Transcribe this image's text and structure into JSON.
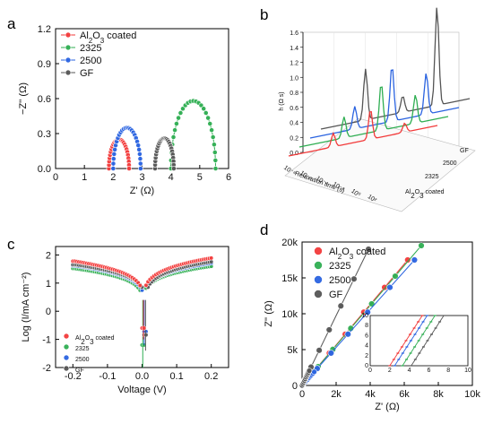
{
  "colors": {
    "al2o3": "#f23a3a",
    "s2325": "#2fae52",
    "s2500": "#2a63e0",
    "gf": "#555555"
  },
  "chart_data": [
    {
      "panel": "a",
      "type": "scatter",
      "xlabel": "Z' (Ω)",
      "ylabel": "−Z'' (Ω)",
      "xlim": [
        0,
        6
      ],
      "ylim": [
        0,
        1.2
      ],
      "xticks": [
        "0",
        "1",
        "2",
        "3",
        "4",
        "5",
        "6"
      ],
      "yticks": [
        "0.0",
        "0.3",
        "0.6",
        "0.9",
        "1.2"
      ],
      "legend_position": "top-left",
      "series": [
        {
          "name": "Al2O3 coated",
          "color": "al2o3",
          "arc": {
            "x_start": 1.85,
            "x_end": 2.55,
            "peak": 0.25
          }
        },
        {
          "name": "2325",
          "color": "s2325",
          "arc": {
            "x_start": 4.0,
            "x_end": 5.55,
            "peak": 0.58
          }
        },
        {
          "name": "2500",
          "color": "s2500",
          "arc": {
            "x_start": 2.0,
            "x_end": 2.95,
            "peak": 0.35
          }
        },
        {
          "name": "GF",
          "color": "gf",
          "arc": {
            "x_start": 3.45,
            "x_end": 4.1,
            "peak": 0.26
          }
        }
      ]
    },
    {
      "panel": "b",
      "type": "line",
      "xlabel": "Relaxation time (s)",
      "zlabel": "h (Ω s)",
      "zlim": [
        0,
        1.6
      ],
      "zticks": [
        "0.0",
        "0.2",
        "0.4",
        "0.6",
        "0.8",
        "1.0",
        "1.2",
        "1.4",
        "1.6"
      ],
      "xticks": [
        "10⁻⁸",
        "10⁻⁶",
        "10⁻⁴",
        "10⁻²",
        "10⁰",
        "10²"
      ],
      "series": [
        {
          "name": "Al2O3 coated",
          "color": "al2o3",
          "peaks": [
            {
              "t": 0.3,
              "h": 0.18
            },
            {
              "t": 0.55,
              "h": 0.4
            },
            {
              "t": 0.78,
              "h": 0.12
            }
          ]
        },
        {
          "name": "2325",
          "color": "s2325",
          "peaks": [
            {
              "t": 0.3,
              "h": 0.28
            },
            {
              "t": 0.55,
              "h": 0.63
            },
            {
              "t": 0.78,
              "h": 0.38
            }
          ]
        },
        {
          "name": "2500",
          "color": "s2500",
          "peaks": [
            {
              "t": 0.3,
              "h": 0.3
            },
            {
              "t": 0.55,
              "h": 0.75
            },
            {
              "t": 0.78,
              "h": 0.55
            }
          ]
        },
        {
          "name": "GF",
          "color": "gf",
          "peaks": [
            {
              "t": 0.3,
              "h": 0.68
            },
            {
              "t": 0.55,
              "h": 0.22
            },
            {
              "t": 0.78,
              "h": 1.32
            }
          ]
        }
      ],
      "depth_labels": [
        "Al2O3 coated",
        "2325",
        "2500",
        "GF"
      ]
    },
    {
      "panel": "c",
      "type": "scatter",
      "xlabel": "Voltage (V)",
      "ylabel": "Log (I/mA cm⁻²)",
      "xlim": [
        -0.25,
        0.25
      ],
      "ylim": [
        -2,
        2.3
      ],
      "xticks": [
        "-0.2",
        "-0.1",
        "0.0",
        "0.1",
        "0.2"
      ],
      "yticks": [
        "-2",
        "-1",
        "0",
        "1",
        "2"
      ],
      "legend_position": "bottom-left",
      "series": [
        {
          "name": "Al2O3 coated",
          "color": "al2o3",
          "left": 1.78,
          "right": 1.9,
          "ecorr": 0.004,
          "dip": -1.0
        },
        {
          "name": "2325",
          "color": "s2325",
          "left": 1.52,
          "right": 1.6,
          "ecorr": 0.002,
          "dip": -2.0
        },
        {
          "name": "2500",
          "color": "s2500",
          "left": 1.62,
          "right": 1.72,
          "ecorr": 0.006,
          "dip": -1.2
        },
        {
          "name": "GF",
          "color": "gf",
          "left": 1.65,
          "right": 1.78,
          "ecorr": 0.01,
          "dip": -1.4
        }
      ]
    },
    {
      "panel": "d",
      "type": "scatter",
      "xlabel": "Z' (Ω)",
      "ylabel": "Z'' (Ω)",
      "xlim": [
        0,
        10000
      ],
      "ylim": [
        0,
        20000
      ],
      "xticks": [
        "0",
        "2k",
        "4k",
        "6k",
        "8k",
        "10k"
      ],
      "yticks": [
        "0",
        "5k",
        "10k",
        "15k",
        "20k"
      ],
      "legend_position": "top-left",
      "series": [
        {
          "name": "Al2O3 coated",
          "color": "al2o3",
          "x_end": 6200,
          "y_end": 17500
        },
        {
          "name": "2325",
          "color": "s2325",
          "x_end": 7000,
          "y_end": 19500
        },
        {
          "name": "2500",
          "color": "s2500",
          "x_end": 6600,
          "y_end": 17500
        },
        {
          "name": "GF",
          "color": "gf",
          "x_end": 3900,
          "y_end": 19000
        }
      ],
      "inset": {
        "xlim": [
          0,
          10
        ],
        "ylim": [
          0,
          10
        ],
        "xticks": [
          "0",
          "2",
          "4",
          "6",
          "8",
          "10"
        ],
        "yticks": [
          "0",
          "2",
          "4",
          "6",
          "8",
          "10"
        ],
        "lines": [
          {
            "color": "al2o3",
            "x0": 2.0,
            "slope": 3.0
          },
          {
            "color": "s2500",
            "x0": 2.5,
            "slope": 3.0
          },
          {
            "color": "s2325",
            "x0": 3.3,
            "slope": 3.0
          },
          {
            "color": "gf",
            "x0": 4.2,
            "slope": 3.0
          }
        ]
      }
    }
  ],
  "panel_labels": [
    "a",
    "b",
    "c",
    "d"
  ],
  "legend": {
    "al2o3_main": "Al",
    "al2o3_sub1": "2",
    "al2o3_mid": "O",
    "al2o3_sub2": "3",
    "al2o3_tail": " coated",
    "s2325": "2325",
    "s2500": "2500",
    "gf": "GF"
  }
}
